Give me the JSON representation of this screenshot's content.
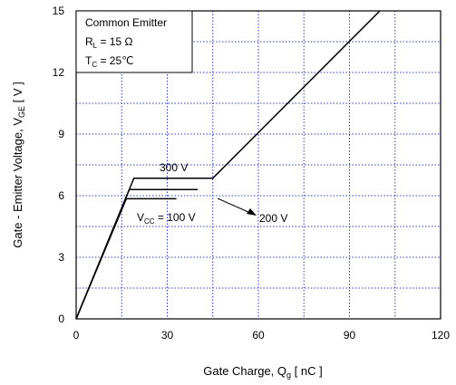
{
  "chart_data": {
    "type": "line",
    "xlabel": "Gate Charge,  Q",
    "xlabel_sub": "g",
    "xlabel_unit": " [ nC ]",
    "ylabel": "Gate - Emitter Voltage,  V",
    "ylabel_sub": "GE",
    "ylabel_unit": " [ V ]",
    "xlim": [
      0,
      120
    ],
    "ylim": [
      0,
      15
    ],
    "xticks": [
      0,
      30,
      60,
      90,
      120
    ],
    "yticks": [
      0,
      3,
      6,
      9,
      12,
      15
    ],
    "grid": true,
    "grid_style": "dotted-blue",
    "conditions": {
      "title": "Common Emitter",
      "line1_main": "R",
      "line1_sub": "L",
      "line1_val": " = 15 Ω",
      "line2_main": "T",
      "line2_sub": "C",
      "line2_val": " = 25℃"
    },
    "series": [
      {
        "name": "300 V",
        "x": [
          0,
          19,
          45,
          100
        ],
        "y": [
          0,
          6.85,
          6.85,
          15
        ]
      },
      {
        "name": "200 V",
        "x": [
          0,
          17.5,
          40
        ],
        "y": [
          0,
          6.3,
          6.3
        ]
      },
      {
        "name": "100 V",
        "x": [
          0,
          16.5,
          33
        ],
        "y": [
          0,
          5.85,
          5.85
        ]
      }
    ],
    "annotations": [
      {
        "text": "300 V"
      },
      {
        "text": "200 V"
      },
      {
        "main": "V",
        "sub": "CC",
        "val": " = 100 V"
      }
    ]
  }
}
